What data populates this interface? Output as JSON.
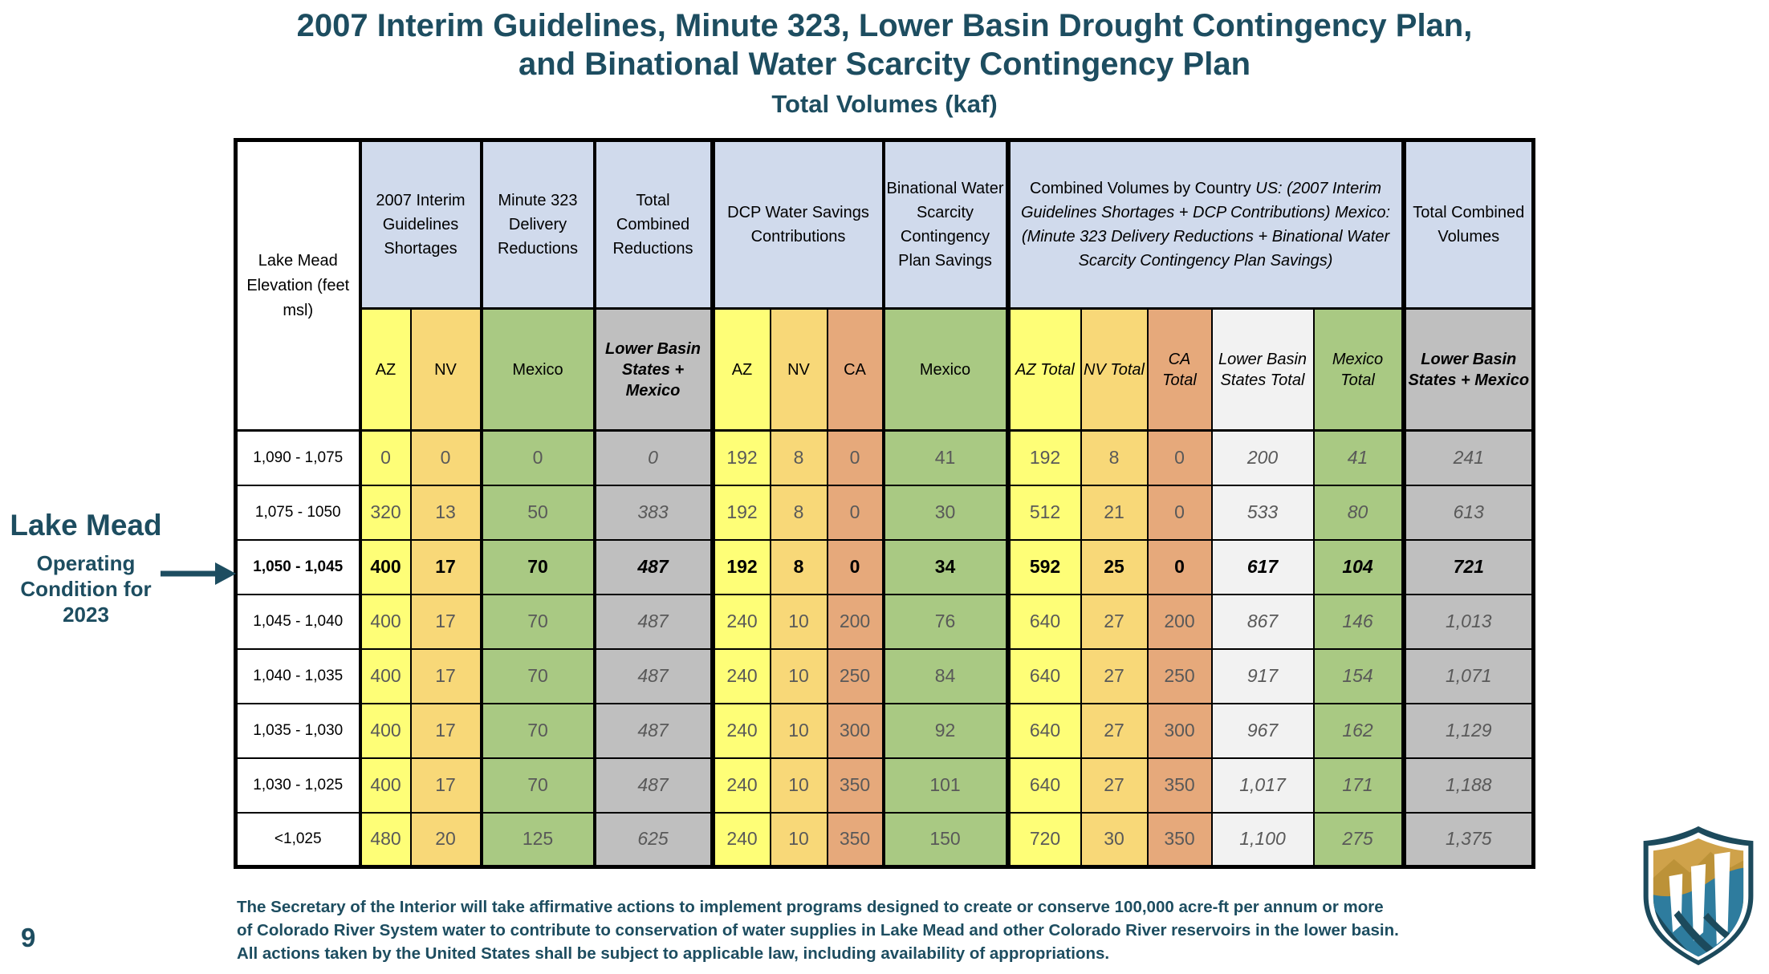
{
  "slide": {
    "title_line1": "2007 Interim Guidelines, Minute 323, Lower Basin Drought Contingency Plan,",
    "title_line2": "and Binational Water Scarcity Contingency Plan",
    "subtitle": "Total Volumes (kaf)",
    "page_number": "9"
  },
  "annotation": {
    "title": "Lake Mead",
    "subtitle": "Operating Condition for 2023",
    "arrow_icon": "right-arrow"
  },
  "table": {
    "corner_header": "Lake Mead Elevation (feet msl)",
    "groups": [
      {
        "span": 2,
        "lines": [
          {
            "text": "2007 Interim Guidelines Shortages",
            "italic": false
          }
        ]
      },
      {
        "span": 1,
        "lines": [
          {
            "text": "Minute 323 Delivery Reductions",
            "italic": false
          }
        ]
      },
      {
        "span": 1,
        "lines": [
          {
            "text": "Total Combined Reductions",
            "italic": false
          }
        ]
      },
      {
        "span": 3,
        "lines": [
          {
            "text": "DCP Water Savings Contributions",
            "italic": false
          }
        ]
      },
      {
        "span": 1,
        "lines": [
          {
            "text": "Binational Water Scarcity Contingency Plan Savings",
            "italic": false
          }
        ]
      },
      {
        "span": 5,
        "lines": [
          {
            "text": "Combined Volumes by Country",
            "italic": false
          },
          {
            "text": "US: (2007 Interim Guidelines Shortages + DCP Contributions)",
            "italic": true
          },
          {
            "text": "Mexico: (Minute 323 Delivery Reductions + Binational Water Scarcity Contingency Plan Savings)",
            "italic": true
          }
        ]
      },
      {
        "span": 1,
        "lines": [
          {
            "text": "Total Combined Volumes",
            "italic": false
          }
        ]
      }
    ],
    "sub_columns": [
      {
        "label": "AZ",
        "bg": "yellow",
        "header_style": "normal",
        "value_italic": false
      },
      {
        "label": "NV",
        "bg": "gold",
        "header_style": "normal",
        "value_italic": false
      },
      {
        "label": "Mexico",
        "bg": "green",
        "header_style": "normal",
        "value_italic": false
      },
      {
        "label": "Lower Basin States + Mexico",
        "bg": "grayDark",
        "header_style": "boldItalic",
        "value_italic": true
      },
      {
        "label": "AZ",
        "bg": "yellow",
        "header_style": "normal",
        "value_italic": false
      },
      {
        "label": "NV",
        "bg": "gold",
        "header_style": "normal",
        "value_italic": false
      },
      {
        "label": "CA",
        "bg": "tan",
        "header_style": "normal",
        "value_italic": false
      },
      {
        "label": "Mexico",
        "bg": "green",
        "header_style": "normal",
        "value_italic": false
      },
      {
        "label": "AZ Total",
        "bg": "yellow",
        "header_style": "italic",
        "value_italic": false
      },
      {
        "label": "NV Total",
        "bg": "gold",
        "header_style": "italic",
        "value_italic": false
      },
      {
        "label": "CA Total",
        "bg": "tan",
        "header_style": "italic",
        "value_italic": false
      },
      {
        "label": "Lower Basin States Total",
        "bg": "grayLight",
        "header_style": "italic",
        "value_italic": true
      },
      {
        "label": "Mexico Total",
        "bg": "green",
        "header_style": "italic",
        "value_italic": true
      },
      {
        "label": "Lower Basin States + Mexico",
        "bg": "grayDark",
        "header_style": "boldItalic",
        "value_italic": true
      }
    ],
    "rows": [
      {
        "elevation": "1,090 - 1,075",
        "highlight": false,
        "values": [
          "0",
          "0",
          "0",
          "0",
          "192",
          "8",
          "0",
          "41",
          "192",
          "8",
          "0",
          "200",
          "41",
          "241"
        ]
      },
      {
        "elevation": "1,075 - 1050",
        "highlight": false,
        "values": [
          "320",
          "13",
          "50",
          "383",
          "192",
          "8",
          "0",
          "30",
          "512",
          "21",
          "0",
          "533",
          "80",
          "613"
        ]
      },
      {
        "elevation": "1,050 - 1,045",
        "highlight": true,
        "values": [
          "400",
          "17",
          "70",
          "487",
          "192",
          "8",
          "0",
          "34",
          "592",
          "25",
          "0",
          "617",
          "104",
          "721"
        ]
      },
      {
        "elevation": "1,045 - 1,040",
        "highlight": false,
        "values": [
          "400",
          "17",
          "70",
          "487",
          "240",
          "10",
          "200",
          "76",
          "640",
          "27",
          "200",
          "867",
          "146",
          "1,013"
        ]
      },
      {
        "elevation": "1,040 - 1,035",
        "highlight": false,
        "values": [
          "400",
          "17",
          "70",
          "487",
          "240",
          "10",
          "250",
          "84",
          "640",
          "27",
          "250",
          "917",
          "154",
          "1,071"
        ]
      },
      {
        "elevation": "1,035 - 1,030",
        "highlight": false,
        "values": [
          "400",
          "17",
          "70",
          "487",
          "240",
          "10",
          "300",
          "92",
          "640",
          "27",
          "300",
          "967",
          "162",
          "1,129"
        ]
      },
      {
        "elevation": "1,030 - 1,025",
        "highlight": false,
        "values": [
          "400",
          "17",
          "70",
          "487",
          "240",
          "10",
          "350",
          "101",
          "640",
          "27",
          "350",
          "1,017",
          "171",
          "1,188"
        ]
      },
      {
        "elevation": "<1,025",
        "highlight": false,
        "values": [
          "480",
          "20",
          "125",
          "625",
          "240",
          "10",
          "350",
          "150",
          "720",
          "30",
          "350",
          "1,100",
          "275",
          "1,375"
        ]
      }
    ]
  },
  "footnote_lines": [
    "The Secretary of the Interior will take affirmative actions to implement programs designed to create or conserve 100,000 acre-ft per annum or more",
    "of Colorado River System water to contribute to conservation of water supplies in Lake Mead and other Colorado River reservoirs in the lower basin.",
    "All actions taken by the United States shall be subject to applicable law, including availability of appropriations."
  ],
  "logo_name": "reclamation-shield-logo",
  "colors": {
    "teal": "#1d4d60",
    "headerBlue": "#d0daec",
    "yellow": "#fefe77",
    "gold": "#f8d878",
    "green": "#a9c983",
    "tan": "#e6a97b",
    "grayDark": "#bfbfbf",
    "grayLight": "#f2f2f2",
    "valueGray": "#595959",
    "black": "#000000",
    "logoGold": "#cfa24a",
    "logoGoldDark": "#bc9238",
    "logoWater": "#2e7c9e",
    "logoOutline": "#1c4a5c"
  }
}
